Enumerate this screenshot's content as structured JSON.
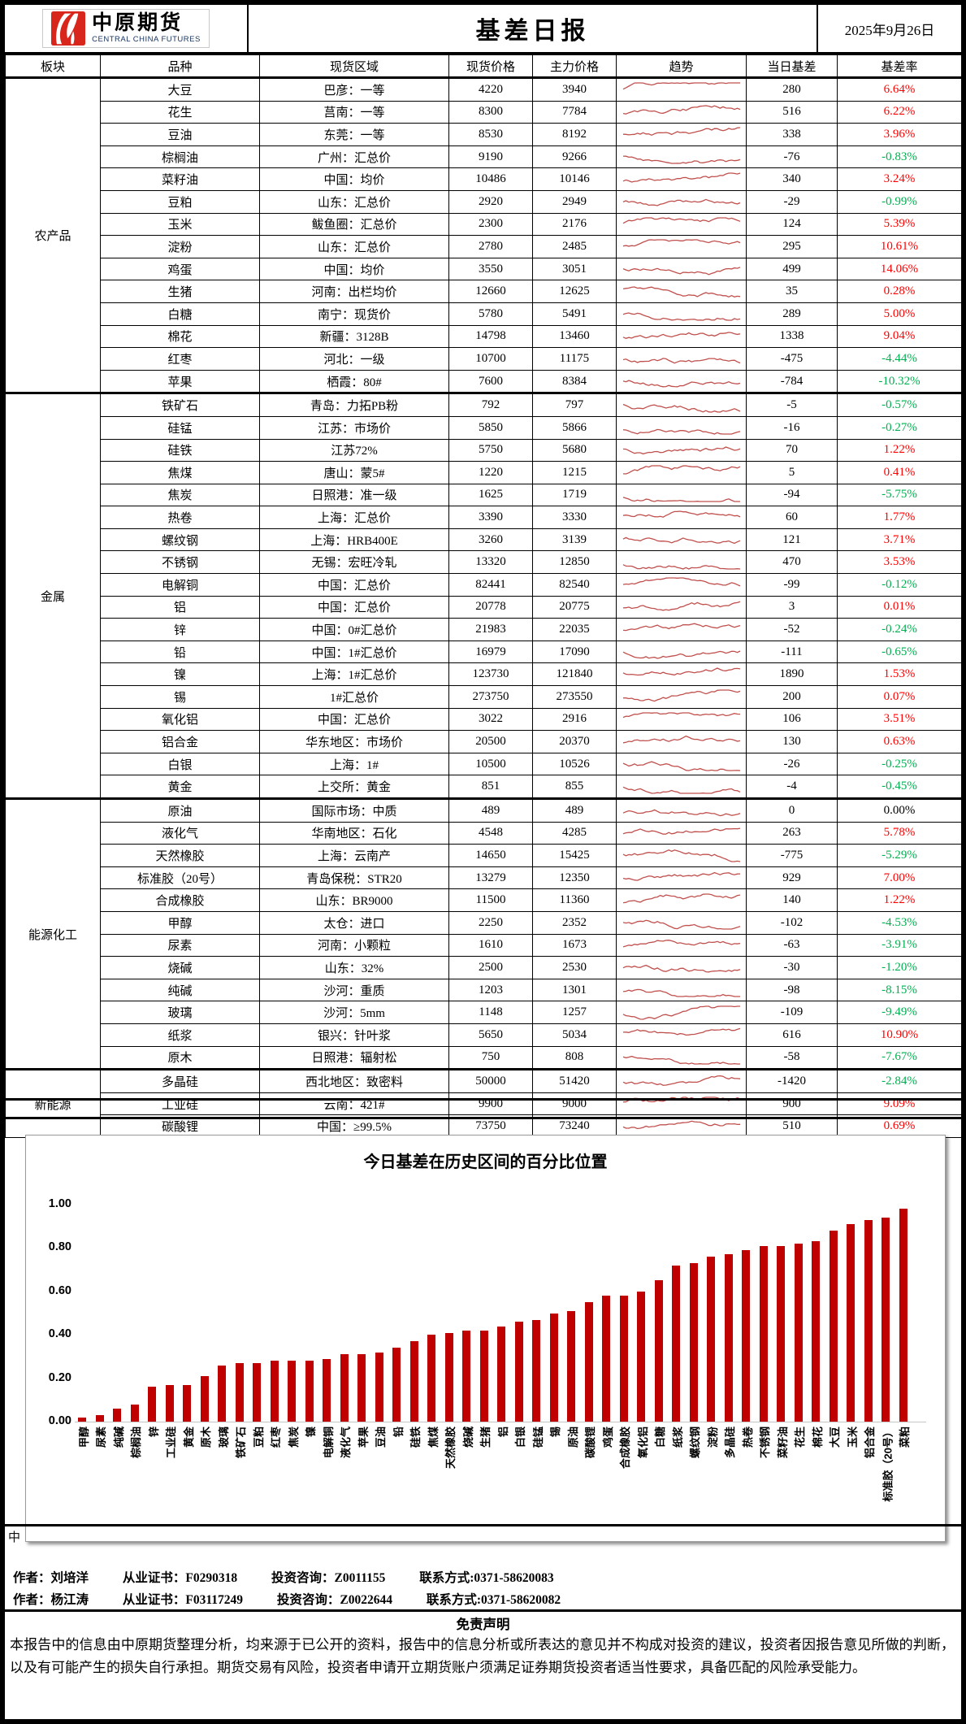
{
  "header": {
    "logo_cn": "中原期货",
    "logo_en": "CENTRAL CHINA FUTURES",
    "title": "基差日报",
    "date": "2025年9月26日"
  },
  "table": {
    "columns": [
      "板块",
      "品种",
      "现货区域",
      "现货价格",
      "主力价格",
      "趋势",
      "当日基差",
      "基差率"
    ],
    "colors": {
      "positive": "#FF0000",
      "negative": "#00B050",
      "zero": "#000000",
      "sparkline": "#C0504D"
    },
    "sections": [
      {
        "name": "农产品",
        "rows": [
          [
            "大豆",
            "巴彦：一等",
            "4220",
            "3940",
            "280",
            "6.64%"
          ],
          [
            "花生",
            "莒南：一等",
            "8300",
            "7784",
            "516",
            "6.22%"
          ],
          [
            "豆油",
            "东莞：一等",
            "8530",
            "8192",
            "338",
            "3.96%"
          ],
          [
            "棕榈油",
            "广州：汇总价",
            "9190",
            "9266",
            "-76",
            "-0.83%"
          ],
          [
            "菜籽油",
            "中国：均价",
            "10486",
            "10146",
            "340",
            "3.24%"
          ],
          [
            "豆粕",
            "山东：汇总价",
            "2920",
            "2949",
            "-29",
            "-0.99%"
          ],
          [
            "玉米",
            "鲅鱼圈：汇总价",
            "2300",
            "2176",
            "124",
            "5.39%"
          ],
          [
            "淀粉",
            "山东：汇总价",
            "2780",
            "2485",
            "295",
            "10.61%"
          ],
          [
            "鸡蛋",
            "中国：均价",
            "3550",
            "3051",
            "499",
            "14.06%"
          ],
          [
            "生猪",
            "河南：出栏均价",
            "12660",
            "12625",
            "35",
            "0.28%"
          ],
          [
            "白糖",
            "南宁：现货价",
            "5780",
            "5491",
            "289",
            "5.00%"
          ],
          [
            "棉花",
            "新疆：3128B",
            "14798",
            "13460",
            "1338",
            "9.04%"
          ],
          [
            "红枣",
            "河北：一级",
            "10700",
            "11175",
            "-475",
            "-4.44%"
          ],
          [
            "苹果",
            "栖霞：80#",
            "7600",
            "8384",
            "-784",
            "-10.32%"
          ]
        ]
      },
      {
        "name": "金属",
        "rows": [
          [
            "铁矿石",
            "青岛：力拓PB粉",
            "792",
            "797",
            "-5",
            "-0.57%"
          ],
          [
            "硅锰",
            "江苏：市场价",
            "5850",
            "5866",
            "-16",
            "-0.27%"
          ],
          [
            "硅铁",
            "江苏72%",
            "5750",
            "5680",
            "70",
            "1.22%"
          ],
          [
            "焦煤",
            "唐山：蒙5#",
            "1220",
            "1215",
            "5",
            "0.41%"
          ],
          [
            "焦炭",
            "日照港：准一级",
            "1625",
            "1719",
            "-94",
            "-5.75%"
          ],
          [
            "热卷",
            "上海：汇总价",
            "3390",
            "3330",
            "60",
            "1.77%"
          ],
          [
            "螺纹钢",
            "上海：HRB400E",
            "3260",
            "3139",
            "121",
            "3.71%"
          ],
          [
            "不锈钢",
            "无锡：宏旺冷轧",
            "13320",
            "12850",
            "470",
            "3.53%"
          ],
          [
            "电解铜",
            "中国：汇总价",
            "82441",
            "82540",
            "-99",
            "-0.12%"
          ],
          [
            "铝",
            "中国：汇总价",
            "20778",
            "20775",
            "3",
            "0.01%"
          ],
          [
            "锌",
            "中国：0#汇总价",
            "21983",
            "22035",
            "-52",
            "-0.24%"
          ],
          [
            "铅",
            "中国：1#汇总价",
            "16979",
            "17090",
            "-111",
            "-0.65%"
          ],
          [
            "镍",
            "上海：1#汇总价",
            "123730",
            "121840",
            "1890",
            "1.53%"
          ],
          [
            "锡",
            "1#汇总价",
            "273750",
            "273550",
            "200",
            "0.07%"
          ],
          [
            "氧化铝",
            "中国：汇总价",
            "3022",
            "2916",
            "106",
            "3.51%"
          ],
          [
            "铝合金",
            "华东地区：市场价",
            "20500",
            "20370",
            "130",
            "0.63%"
          ],
          [
            "白银",
            "上海：1#",
            "10500",
            "10526",
            "-26",
            "-0.25%"
          ],
          [
            "黄金",
            "上交所：黄金",
            "851",
            "855",
            "-4",
            "-0.45%"
          ]
        ]
      },
      {
        "name": "能源化工",
        "rows": [
          [
            "原油",
            "国际市场：中质",
            "489",
            "489",
            "0",
            "0.00%"
          ],
          [
            "液化气",
            "华南地区：石化",
            "4548",
            "4285",
            "263",
            "5.78%"
          ],
          [
            "天然橡胶",
            "上海：云南产",
            "14650",
            "15425",
            "-775",
            "-5.29%"
          ],
          [
            "标准胶（20号）",
            "青岛保税：STR20",
            "13279",
            "12350",
            "929",
            "7.00%"
          ],
          [
            "合成橡胶",
            "山东：BR9000",
            "11500",
            "11360",
            "140",
            "1.22%"
          ],
          [
            "甲醇",
            "太仓：进口",
            "2250",
            "2352",
            "-102",
            "-4.53%"
          ],
          [
            "尿素",
            "河南：小颗粒",
            "1610",
            "1673",
            "-63",
            "-3.91%"
          ],
          [
            "烧碱",
            "山东：32%",
            "2500",
            "2530",
            "-30",
            "-1.20%"
          ],
          [
            "纯碱",
            "沙河：重质",
            "1203",
            "1301",
            "-98",
            "-8.15%"
          ],
          [
            "玻璃",
            "沙河：5mm",
            "1148",
            "1257",
            "-109",
            "-9.49%"
          ],
          [
            "纸浆",
            "银兴：针叶浆",
            "5650",
            "5034",
            "616",
            "10.90%"
          ],
          [
            "原木",
            "日照港：辐射松",
            "750",
            "808",
            "-58",
            "-7.67%"
          ]
        ]
      },
      {
        "name": "新能源",
        "rows": [
          [
            "多晶硅",
            "西北地区：致密料",
            "50000",
            "51420",
            "-1420",
            "-2.84%"
          ],
          [
            "工业硅",
            "云南：421#",
            "9900",
            "9000",
            "900",
            "9.09%"
          ],
          [
            "碳酸锂",
            "中国：≥99.5%",
            "73750",
            "73240",
            "510",
            "0.69%"
          ]
        ]
      }
    ]
  },
  "chart_data": {
    "type": "bar",
    "title": "今日基差在历史区间的百分比位置",
    "xlabel": "",
    "ylabel": "",
    "ylim": [
      0,
      1
    ],
    "yticks": [
      "0.00",
      "0.20",
      "0.40",
      "0.60",
      "0.80",
      "1.00"
    ],
    "bar_color": "#C00000",
    "grid": false,
    "legend": "none",
    "categories": [
      "甲醇",
      "尿素",
      "纯碱",
      "棕榈油",
      "锌",
      "工业硅",
      "黄金",
      "原木",
      "玻璃",
      "铁矿石",
      "豆粕",
      "红枣",
      "焦炭",
      "镍",
      "电解铜",
      "液化气",
      "苹果",
      "豆油",
      "铅",
      "硅铁",
      "焦煤",
      "天然橡胶",
      "烧碱",
      "生猪",
      "铝",
      "白银",
      "硅锰",
      "锡",
      "原油",
      "碳酸锂",
      "鸡蛋",
      "合成橡胶",
      "氧化铝",
      "白糖",
      "纸浆",
      "螺纹钢",
      "淀粉",
      "多晶硅",
      "热卷",
      "不锈钢",
      "菜籽油",
      "花生",
      "棉花",
      "大豆",
      "玉米",
      "铝合金",
      "标准胶（20号）",
      "菜粕"
    ],
    "values": [
      0.02,
      0.03,
      0.06,
      0.08,
      0.16,
      0.17,
      0.17,
      0.21,
      0.26,
      0.27,
      0.27,
      0.28,
      0.28,
      0.28,
      0.29,
      0.31,
      0.31,
      0.32,
      0.34,
      0.37,
      0.4,
      0.41,
      0.42,
      0.42,
      0.44,
      0.46,
      0.47,
      0.5,
      0.51,
      0.55,
      0.58,
      0.58,
      0.6,
      0.65,
      0.72,
      0.73,
      0.76,
      0.77,
      0.79,
      0.81,
      0.81,
      0.82,
      0.83,
      0.88,
      0.91,
      0.93,
      0.94,
      0.98
    ]
  },
  "footer": {
    "obscured_fragment": "中",
    "authors": [
      {
        "name": "作者：刘培洋",
        "cert": "从业证书：F0290318",
        "advisory": "投资咨询：Z0011155",
        "contact": "联系方式:0371-58620083"
      },
      {
        "name": "作者：杨江涛",
        "cert": "从业证书：F03117249",
        "advisory": "投资咨询：Z0022644",
        "contact": "联系方式:0371-58620082"
      }
    ],
    "disclaimer_title": "免责声明",
    "disclaimer_text": "本报告中的信息由中原期货整理分析，均来源于已公开的资料，报告中的信息分析或所表达的意见并不构成对投资的建议，投资者因报告意见所做的判断，以及有可能产生的损失自行承担。期货交易有风险，投资者申请开立期货账户须满足证券期货投资者适当性要求，具备匹配的风险承受能力。"
  }
}
